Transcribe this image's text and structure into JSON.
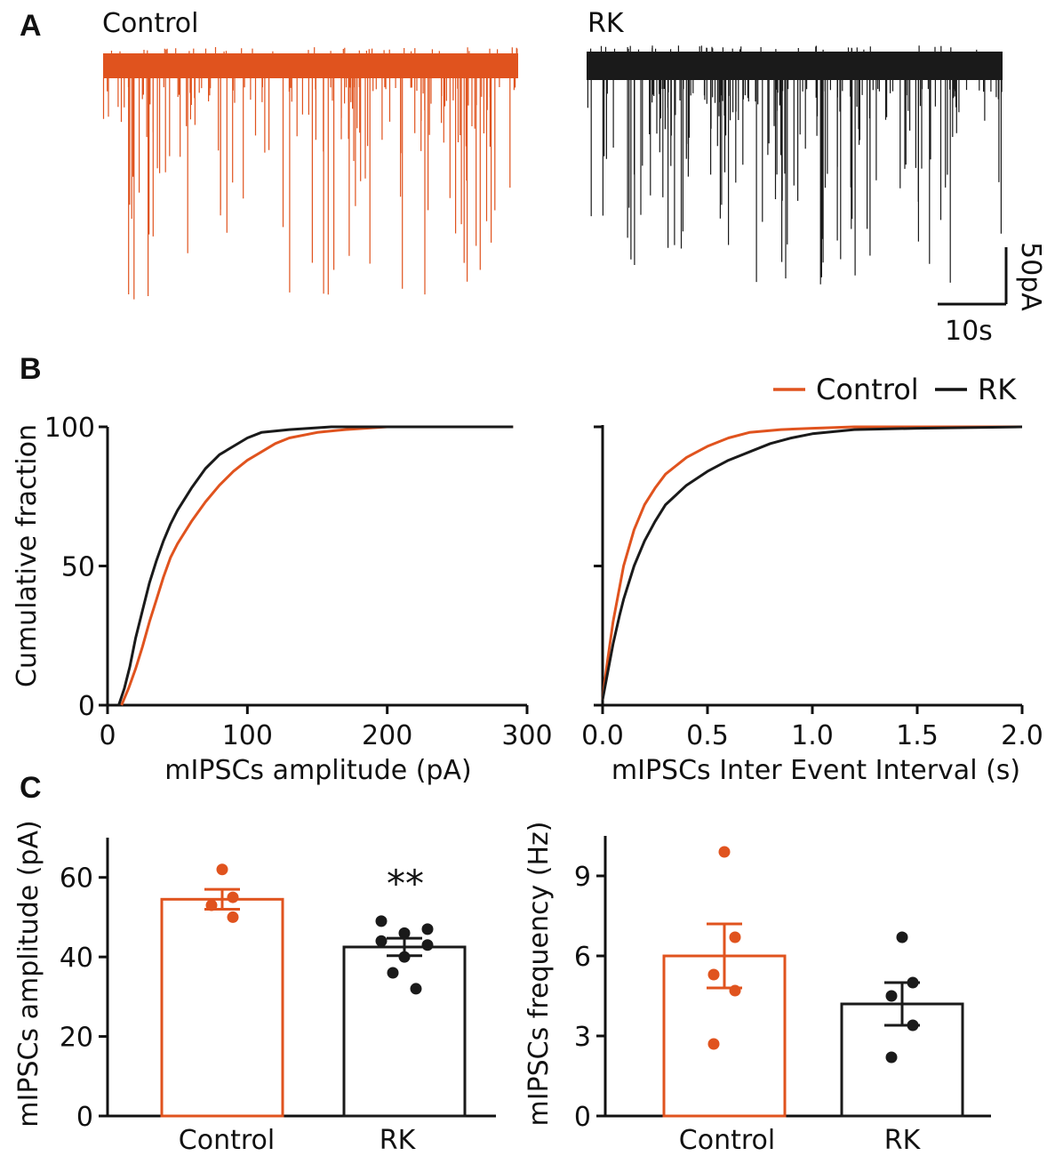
{
  "colors": {
    "control": "#E0531E",
    "rk": "#1a1a1a",
    "axis": "#111111"
  },
  "panel_labels": [
    "A",
    "B",
    "C"
  ],
  "chart_data": [
    {
      "id": "A",
      "type": "line",
      "description_type": "electrophysiology traces",
      "series": [
        {
          "name": "Control",
          "color_key": "control",
          "events": 150
        },
        {
          "name": "RK",
          "color_key": "rk",
          "events": 190
        }
      ],
      "scale_bar": {
        "y_label": "50pA",
        "x_label": "10s",
        "y_value": 50,
        "x_value": 10
      }
    },
    {
      "id": "B1",
      "type": "line",
      "xlabel": "mIPSCs amplitude (pA)",
      "ylabel": "Cumulative fraction",
      "xlim": [
        0,
        300
      ],
      "ylim": [
        0,
        100
      ],
      "xticks": [
        "0",
        "100",
        "200",
        "300"
      ],
      "yticks": [
        "0",
        "50",
        "100"
      ],
      "legend": [
        "Control",
        "RK"
      ],
      "legend_position": "top-right",
      "series": [
        {
          "name": "Control",
          "color_key": "control",
          "points": [
            [
              10,
              0
            ],
            [
              15,
              6
            ],
            [
              20,
              13
            ],
            [
              25,
              21
            ],
            [
              30,
              30
            ],
            [
              35,
              38
            ],
            [
              40,
              46
            ],
            [
              45,
              53
            ],
            [
              50,
              58
            ],
            [
              60,
              66
            ],
            [
              70,
              73
            ],
            [
              80,
              79
            ],
            [
              90,
              84
            ],
            [
              100,
              88
            ],
            [
              110,
              91
            ],
            [
              120,
              94
            ],
            [
              130,
              96
            ],
            [
              150,
              98
            ],
            [
              170,
              99
            ],
            [
              200,
              100
            ],
            [
              290,
              100
            ]
          ]
        },
        {
          "name": "RK",
          "color_key": "rk",
          "points": [
            [
              8,
              0
            ],
            [
              12,
              6
            ],
            [
              16,
              14
            ],
            [
              20,
              24
            ],
            [
              25,
              34
            ],
            [
              30,
              44
            ],
            [
              35,
              52
            ],
            [
              40,
              59
            ],
            [
              45,
              65
            ],
            [
              50,
              70
            ],
            [
              60,
              78
            ],
            [
              70,
              85
            ],
            [
              80,
              90
            ],
            [
              90,
              93
            ],
            [
              100,
              96
            ],
            [
              110,
              98
            ],
            [
              130,
              99
            ],
            [
              160,
              100
            ],
            [
              290,
              100
            ]
          ]
        }
      ]
    },
    {
      "id": "B2",
      "type": "line",
      "xlabel": "mIPSCs Inter Event Interval (s)",
      "ylabel": "",
      "xlim": [
        0,
        2
      ],
      "ylim": [
        0,
        100
      ],
      "xticks": [
        "0.0",
        "0.5",
        "1.0",
        "1.5",
        "2.0"
      ],
      "yticks": [],
      "series": [
        {
          "name": "Control",
          "color_key": "control",
          "points": [
            [
              0,
              2
            ],
            [
              0.02,
              14
            ],
            [
              0.05,
              30
            ],
            [
              0.08,
              42
            ],
            [
              0.1,
              50
            ],
            [
              0.15,
              63
            ],
            [
              0.2,
              72
            ],
            [
              0.25,
              78
            ],
            [
              0.3,
              83
            ],
            [
              0.4,
              89
            ],
            [
              0.5,
              93
            ],
            [
              0.6,
              96
            ],
            [
              0.7,
              98
            ],
            [
              0.85,
              99
            ],
            [
              1.0,
              99.5
            ],
            [
              1.2,
              100
            ],
            [
              2.0,
              100
            ]
          ]
        },
        {
          "name": "RK",
          "color_key": "rk",
          "points": [
            [
              0,
              2
            ],
            [
              0.02,
              10
            ],
            [
              0.05,
              22
            ],
            [
              0.08,
              32
            ],
            [
              0.1,
              38
            ],
            [
              0.15,
              50
            ],
            [
              0.2,
              59
            ],
            [
              0.25,
              66
            ],
            [
              0.3,
              72
            ],
            [
              0.4,
              79
            ],
            [
              0.5,
              84
            ],
            [
              0.6,
              88
            ],
            [
              0.7,
              91
            ],
            [
              0.8,
              94
            ],
            [
              0.9,
              96
            ],
            [
              1.0,
              97.5
            ],
            [
              1.2,
              99
            ],
            [
              1.5,
              99.5
            ],
            [
              2.0,
              100
            ]
          ]
        }
      ]
    },
    {
      "id": "C1",
      "type": "bar",
      "ylabel": "mIPSCs amplitude (pA)",
      "ylim": [
        0,
        70
      ],
      "yticks": [
        "0",
        "20",
        "40",
        "60"
      ],
      "categories": [
        "Control",
        "RK"
      ],
      "values": [
        54.5,
        42.5
      ],
      "sem": [
        2.5,
        2.2
      ],
      "points": [
        [
          62,
          55,
          53,
          50
        ],
        [
          49,
          46,
          47,
          44,
          40,
          43,
          36,
          32
        ]
      ],
      "annotation": "**"
    },
    {
      "id": "C2",
      "type": "bar",
      "ylabel": "mIPSCs frequency (Hz)",
      "ylim": [
        0,
        10.5
      ],
      "yticks": [
        "0",
        "3",
        "6",
        "9"
      ],
      "categories": [
        "Control",
        "RK"
      ],
      "values": [
        6.0,
        4.2
      ],
      "sem": [
        1.2,
        0.8
      ],
      "points": [
        [
          9.9,
          6.7,
          5.3,
          4.7,
          2.7
        ],
        [
          6.7,
          5.0,
          4.5,
          3.4,
          2.2
        ]
      ]
    }
  ]
}
